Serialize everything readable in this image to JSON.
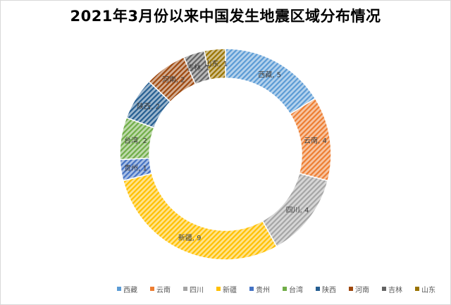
{
  "title": "2021年3月份以来中国发生地震区域分布情况",
  "chart_data": {
    "type": "pie",
    "style": "doughnut",
    "title": "2021年3月份以来中国发生地震区域分布情况",
    "legend_position": "bottom",
    "categories": [
      "西藏",
      "云南",
      "四川",
      "新疆",
      "贵州",
      "台湾",
      "陕西",
      "河南",
      "吉林",
      "山东"
    ],
    "values": [
      5,
      4,
      4,
      9,
      1,
      2,
      2,
      2,
      1,
      1
    ],
    "data_labels": [
      "西藏, 5",
      "云南, 4",
      "四川, 4",
      "新疆, 9",
      "贵州, 1",
      "台湾, 2",
      "陕西, 2",
      "河南, 2",
      "吉林, 1",
      "山东, 1"
    ],
    "colors": [
      "#5b9bd5",
      "#ed7d31",
      "#a5a5a5",
      "#ffc000",
      "#4472c4",
      "#70ad47",
      "#255e91",
      "#9e480e",
      "#636363",
      "#997300"
    ]
  }
}
